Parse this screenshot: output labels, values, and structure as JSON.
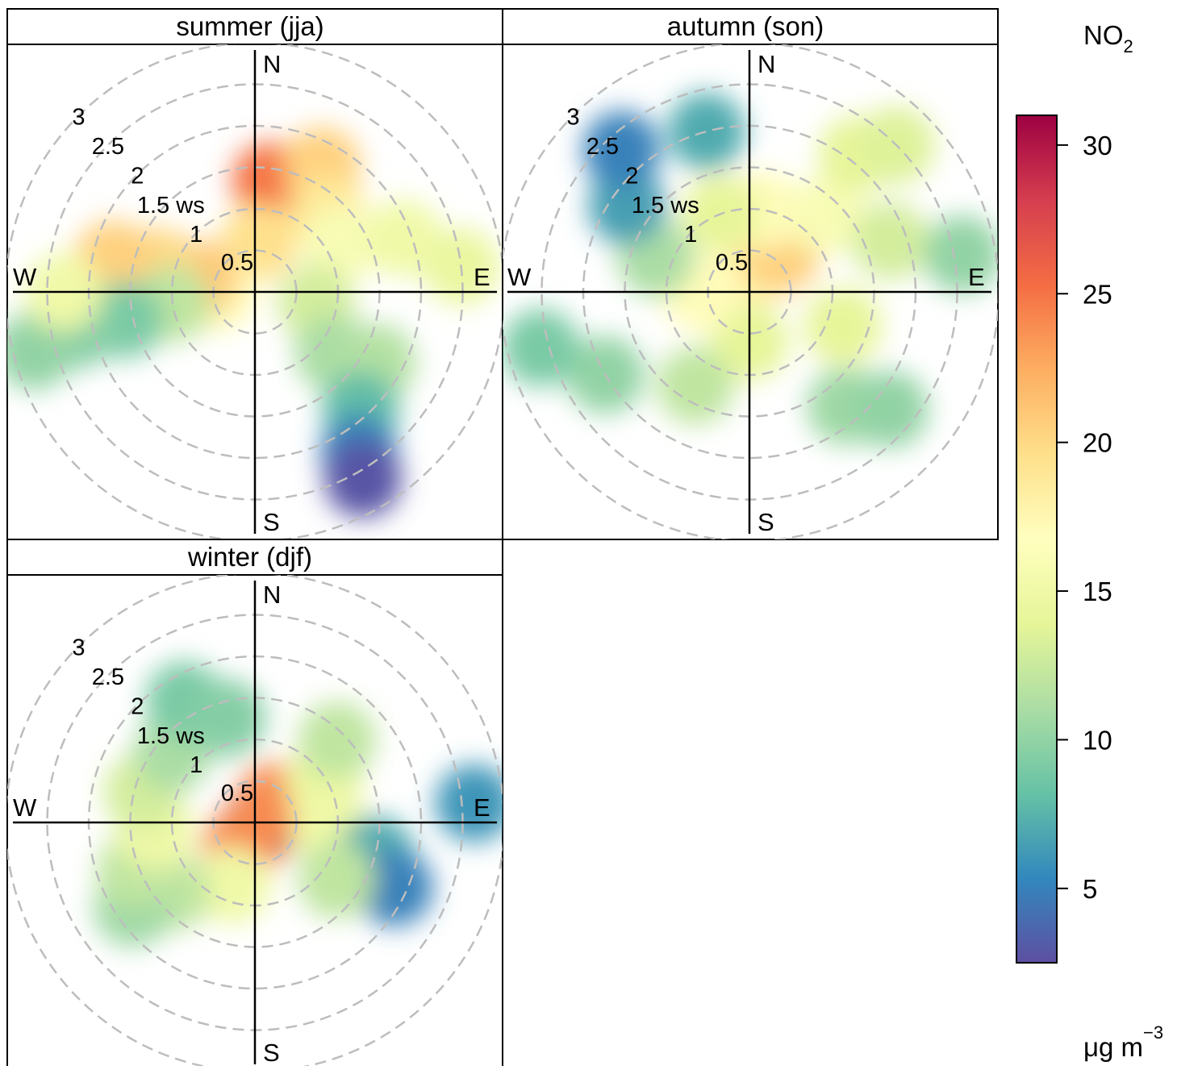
{
  "chart_data": {
    "type": "heatmap",
    "subtype": "polar plot",
    "variable": "NO",
    "variable_subscript": "2",
    "units": "μg m",
    "units_superscript": "−3",
    "colorbar": {
      "range": [
        2.5,
        31
      ],
      "ticks": [
        5,
        10,
        15,
        20,
        25,
        30
      ],
      "palette": [
        "#5e4fa2",
        "#3288bd",
        "#66c2a5",
        "#abdda4",
        "#e6f598",
        "#ffffbf",
        "#fee08b",
        "#fdae61",
        "#f46d43",
        "#d53e4f",
        "#9e0142"
      ]
    },
    "radial_axis": {
      "label": "ws",
      "max": 3,
      "rings": [
        0.5,
        1,
        1.5,
        2,
        2.5,
        3
      ],
      "ring_labels": [
        "0.5",
        "1",
        "1.5 ws",
        "2",
        "2.5",
        "3"
      ]
    },
    "compass": [
      "N",
      "E",
      "S",
      "W"
    ],
    "grid_color": "#bdbdbd",
    "panels": [
      {
        "title": "summer (jja)",
        "blobs": [
          {
            "dir": 8,
            "ws": 1.35,
            "value": 25.0
          },
          {
            "dir": 28,
            "ws": 1.72,
            "value": 20.5
          },
          {
            "dir": 42,
            "ws": 1.3,
            "value": 19.0
          },
          {
            "dir": 5,
            "ws": 0.6,
            "value": 19.5
          },
          {
            "dir": 60,
            "ws": 1.2,
            "value": 16.0
          },
          {
            "dir": 70,
            "ws": 1.9,
            "value": 15.0
          },
          {
            "dir": 83,
            "ws": 2.5,
            "value": 14.5
          },
          {
            "dir": 100,
            "ws": 0.75,
            "value": 13.0
          },
          {
            "dir": 128,
            "ws": 1.2,
            "value": 11.0
          },
          {
            "dir": 120,
            "ws": 1.7,
            "value": 11.5
          },
          {
            "dir": 138,
            "ws": 1.9,
            "value": 8.0
          },
          {
            "dir": 147,
            "ws": 2.3,
            "value": 5.0
          },
          {
            "dir": 150,
            "ws": 2.6,
            "value": 2.8
          },
          {
            "dir": 268,
            "ws": 0.45,
            "value": 17.0
          },
          {
            "dir": 283,
            "ws": 0.7,
            "value": 21.0
          },
          {
            "dir": 285,
            "ws": 1.2,
            "value": 20.0
          },
          {
            "dir": 283,
            "ws": 1.75,
            "value": 20.5
          },
          {
            "dir": 262,
            "ws": 1.0,
            "value": 12.0
          },
          {
            "dir": 258,
            "ws": 1.6,
            "value": 9.0
          },
          {
            "dir": 258,
            "ws": 2.2,
            "value": 9.5
          },
          {
            "dir": 255,
            "ws": 2.75,
            "value": 10.0
          },
          {
            "dir": 270,
            "ws": 2.3,
            "value": 15.0
          }
        ]
      },
      {
        "title": "autumn (son)",
        "blobs": [
          {
            "dir": 20,
            "ws": 0.35,
            "value": 18.0
          },
          {
            "dir": 40,
            "ws": 0.6,
            "value": 20.5
          },
          {
            "dir": 10,
            "ws": 1.0,
            "value": 17.0
          },
          {
            "dir": 45,
            "ws": 1.3,
            "value": 16.0
          },
          {
            "dir": 38,
            "ws": 2.1,
            "value": 14.0
          },
          {
            "dir": 45,
            "ws": 2.5,
            "value": 13.5
          },
          {
            "dir": 70,
            "ws": 1.8,
            "value": 13.0
          },
          {
            "dir": 80,
            "ws": 2.6,
            "value": 10.0
          },
          {
            "dir": 110,
            "ws": 1.2,
            "value": 14.0
          },
          {
            "dir": 140,
            "ws": 1.8,
            "value": 10.5
          },
          {
            "dir": 130,
            "ws": 2.2,
            "value": 10.0
          },
          {
            "dir": 180,
            "ws": 0.6,
            "value": 14.0
          },
          {
            "dir": 210,
            "ws": 1.3,
            "value": 12.0
          },
          {
            "dir": 240,
            "ws": 2.0,
            "value": 10.0
          },
          {
            "dir": 255,
            "ws": 2.6,
            "value": 9.0
          },
          {
            "dir": 270,
            "ws": 0.6,
            "value": 17.0
          },
          {
            "dir": 290,
            "ws": 1.2,
            "value": 11.0
          },
          {
            "dir": 305,
            "ws": 1.8,
            "value": 6.5
          },
          {
            "dir": 318,
            "ws": 2.3,
            "value": 5.0
          },
          {
            "dir": 340,
            "ws": 1.0,
            "value": 14.0
          },
          {
            "dir": 345,
            "ws": 2.0,
            "value": 7.0
          }
        ]
      },
      {
        "title": "winter (djf)",
        "blobs": [
          {
            "dir": 90,
            "ws": 0.1,
            "value": 31.0
          },
          {
            "dir": 45,
            "ws": 0.35,
            "value": 24.0
          },
          {
            "dir": 210,
            "ws": 0.35,
            "value": 24.0
          },
          {
            "dir": 60,
            "ws": 0.95,
            "value": 14.5
          },
          {
            "dir": 45,
            "ws": 1.4,
            "value": 12.0
          },
          {
            "dir": 95,
            "ws": 0.9,
            "value": 15.0
          },
          {
            "dir": 105,
            "ws": 1.5,
            "value": 7.0
          },
          {
            "dir": 115,
            "ws": 1.85,
            "value": 5.0
          },
          {
            "dir": 85,
            "ws": 2.65,
            "value": 6.0
          },
          {
            "dir": 125,
            "ws": 1.2,
            "value": 12.0
          },
          {
            "dir": 200,
            "ws": 0.8,
            "value": 15.0
          },
          {
            "dir": 230,
            "ws": 1.3,
            "value": 12.0
          },
          {
            "dir": 235,
            "ws": 1.8,
            "value": 10.5
          },
          {
            "dir": 248,
            "ws": 1.55,
            "value": 12.0
          },
          {
            "dir": 265,
            "ws": 1.2,
            "value": 15.0
          },
          {
            "dir": 285,
            "ws": 1.4,
            "value": 13.0
          },
          {
            "dir": 310,
            "ws": 1.3,
            "value": 11.0
          },
          {
            "dir": 330,
            "ws": 1.7,
            "value": 9.0
          },
          {
            "dir": 345,
            "ws": 1.3,
            "value": 9.5
          }
        ]
      }
    ]
  }
}
